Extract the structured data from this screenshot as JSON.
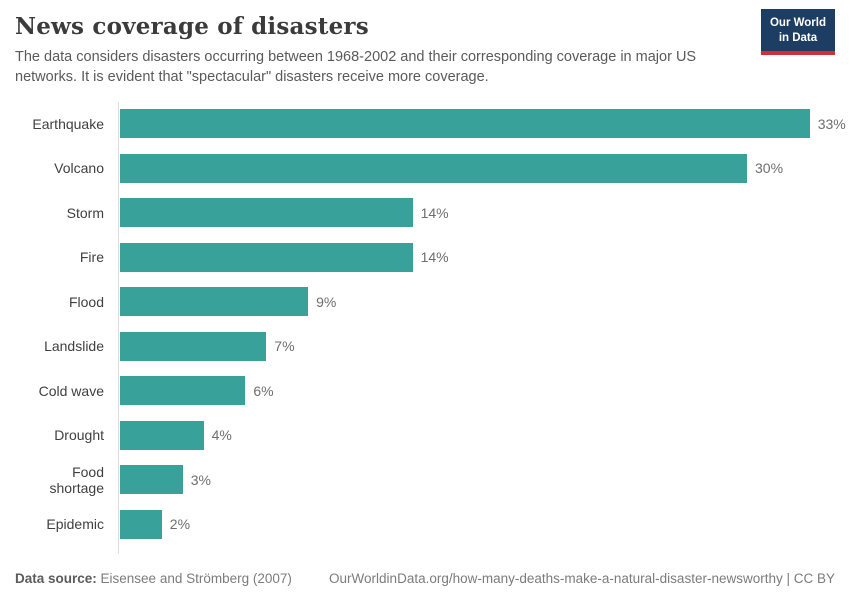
{
  "header": {
    "title": "News coverage of disasters",
    "subtitle": "The data considers disasters occurring between 1968-2002 and their corresponding coverage in major US networks. It is evident that \"spectacular\" disasters receive more coverage.",
    "logo": {
      "line1": "Our World",
      "line2": "in Data"
    }
  },
  "chart_data": {
    "type": "bar",
    "orientation": "horizontal",
    "title": "News coverage of disasters",
    "categories": [
      "Earthquake",
      "Volcano",
      "Storm",
      "Fire",
      "Flood",
      "Landslide",
      "Cold wave",
      "Drought",
      "Food shortage",
      "Epidemic"
    ],
    "values": [
      33,
      30,
      14,
      14,
      9,
      7,
      6,
      4,
      3,
      2
    ],
    "value_labels": [
      "33%",
      "30%",
      "14%",
      "14%",
      "9%",
      "7%",
      "6%",
      "4%",
      "3%",
      "2%"
    ],
    "unit": "%",
    "xlim": [
      0,
      35
    ],
    "grid": false,
    "legend": "none"
  },
  "footer": {
    "source_label": "Data source:",
    "source_text": " Eisensee and Strömberg (2007)",
    "attribution": "OurWorldinData.org/how-many-deaths-make-a-natural-disaster-newsworthy | CC BY"
  },
  "colors": {
    "bar": "#38a19a",
    "logo_bg": "#1d3d63",
    "logo_stripe": "#cf3035",
    "axis_line": "#dcdcdc"
  }
}
